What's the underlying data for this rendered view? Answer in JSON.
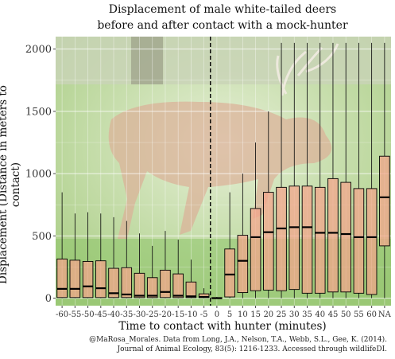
{
  "chart_data": {
    "type": "boxplot",
    "title": [
      "Displacement of male white-tailed deers",
      "before and after contact with a mock-hunter"
    ],
    "xlabel": "Time to contact with hunter (minutes)",
    "ylabel": "Displacement (Distance in meters to contact)",
    "ylim": [
      -60,
      2100
    ],
    "yticks": [
      0,
      500,
      1000,
      1500,
      2000
    ],
    "grid": true,
    "vline_after_category": "-5",
    "categories": [
      "-60",
      "-55",
      "-50",
      "-45",
      "-40",
      "-35",
      "-30",
      "-25",
      "-20",
      "-15",
      "-10",
      "-5",
      "0",
      "5",
      "10",
      "15",
      "20",
      "25",
      "30",
      "35",
      "40",
      "45",
      "50",
      "55",
      "60",
      "NA"
    ],
    "boxes": [
      {
        "min": 0,
        "q1": 5,
        "median": 75,
        "q3": 315,
        "max": 850
      },
      {
        "min": 0,
        "q1": 5,
        "median": 75,
        "q3": 305,
        "max": 680
      },
      {
        "min": 0,
        "q1": 5,
        "median": 95,
        "q3": 295,
        "max": 690
      },
      {
        "min": 0,
        "q1": 5,
        "median": 80,
        "q3": 300,
        "max": 680
      },
      {
        "min": 0,
        "q1": 5,
        "median": 40,
        "q3": 240,
        "max": 650
      },
      {
        "min": 0,
        "q1": 5,
        "median": 30,
        "q3": 245,
        "max": 620
      },
      {
        "min": 0,
        "q1": 5,
        "median": 20,
        "q3": 200,
        "max": 520
      },
      {
        "min": 0,
        "q1": 5,
        "median": 20,
        "q3": 165,
        "max": 420
      },
      {
        "min": 0,
        "q1": 5,
        "median": 50,
        "q3": 225,
        "max": 540
      },
      {
        "min": 0,
        "q1": 5,
        "median": 20,
        "q3": 195,
        "max": 470
      },
      {
        "min": 0,
        "q1": 5,
        "median": 15,
        "q3": 130,
        "max": 310
      },
      {
        "min": 0,
        "q1": 5,
        "median": 10,
        "q3": 35,
        "max": 80
      },
      {
        "min": 0,
        "q1": 0,
        "median": 0,
        "q3": 5,
        "max": 10
      },
      {
        "min": 0,
        "q1": 10,
        "median": 190,
        "q3": 395,
        "max": 850
      },
      {
        "min": 0,
        "q1": 45,
        "median": 300,
        "q3": 505,
        "max": 1000
      },
      {
        "min": 0,
        "q1": 60,
        "median": 490,
        "q3": 720,
        "max": 1250
      },
      {
        "min": 0,
        "q1": 65,
        "median": 530,
        "q3": 850,
        "max": 1500
      },
      {
        "min": 0,
        "q1": 60,
        "median": 560,
        "q3": 890,
        "max": 2050
      },
      {
        "min": 0,
        "q1": 70,
        "median": 570,
        "q3": 900,
        "max": 2050
      },
      {
        "min": 0,
        "q1": 40,
        "median": 570,
        "q3": 900,
        "max": 2050
      },
      {
        "min": 0,
        "q1": 40,
        "median": 525,
        "q3": 890,
        "max": 2050
      },
      {
        "min": 0,
        "q1": 50,
        "median": 525,
        "q3": 960,
        "max": 2050
      },
      {
        "min": 0,
        "q1": 50,
        "median": 515,
        "q3": 930,
        "max": 2050
      },
      {
        "min": 0,
        "q1": 40,
        "median": 490,
        "q3": 880,
        "max": 2050
      },
      {
        "min": 0,
        "q1": 30,
        "median": 490,
        "q3": 880,
        "max": 2050
      },
      {
        "min": 0,
        "q1": 420,
        "median": 810,
        "q3": 1140,
        "max": 2050
      }
    ]
  },
  "caption": [
    "@MaRosa_Morales. Data from Long, J.A., Nelson, T.A., Webb, S.L., Gee, K. (2014).",
    "Journal of Animal Ecology, 83(5): 1216-1233. Accessed through wildlifeDI."
  ],
  "colors": {
    "box_fill": "#f4a38a",
    "box_stroke": "#000000",
    "grid": "#ffffff",
    "photo_bg": "#b9d79a"
  }
}
